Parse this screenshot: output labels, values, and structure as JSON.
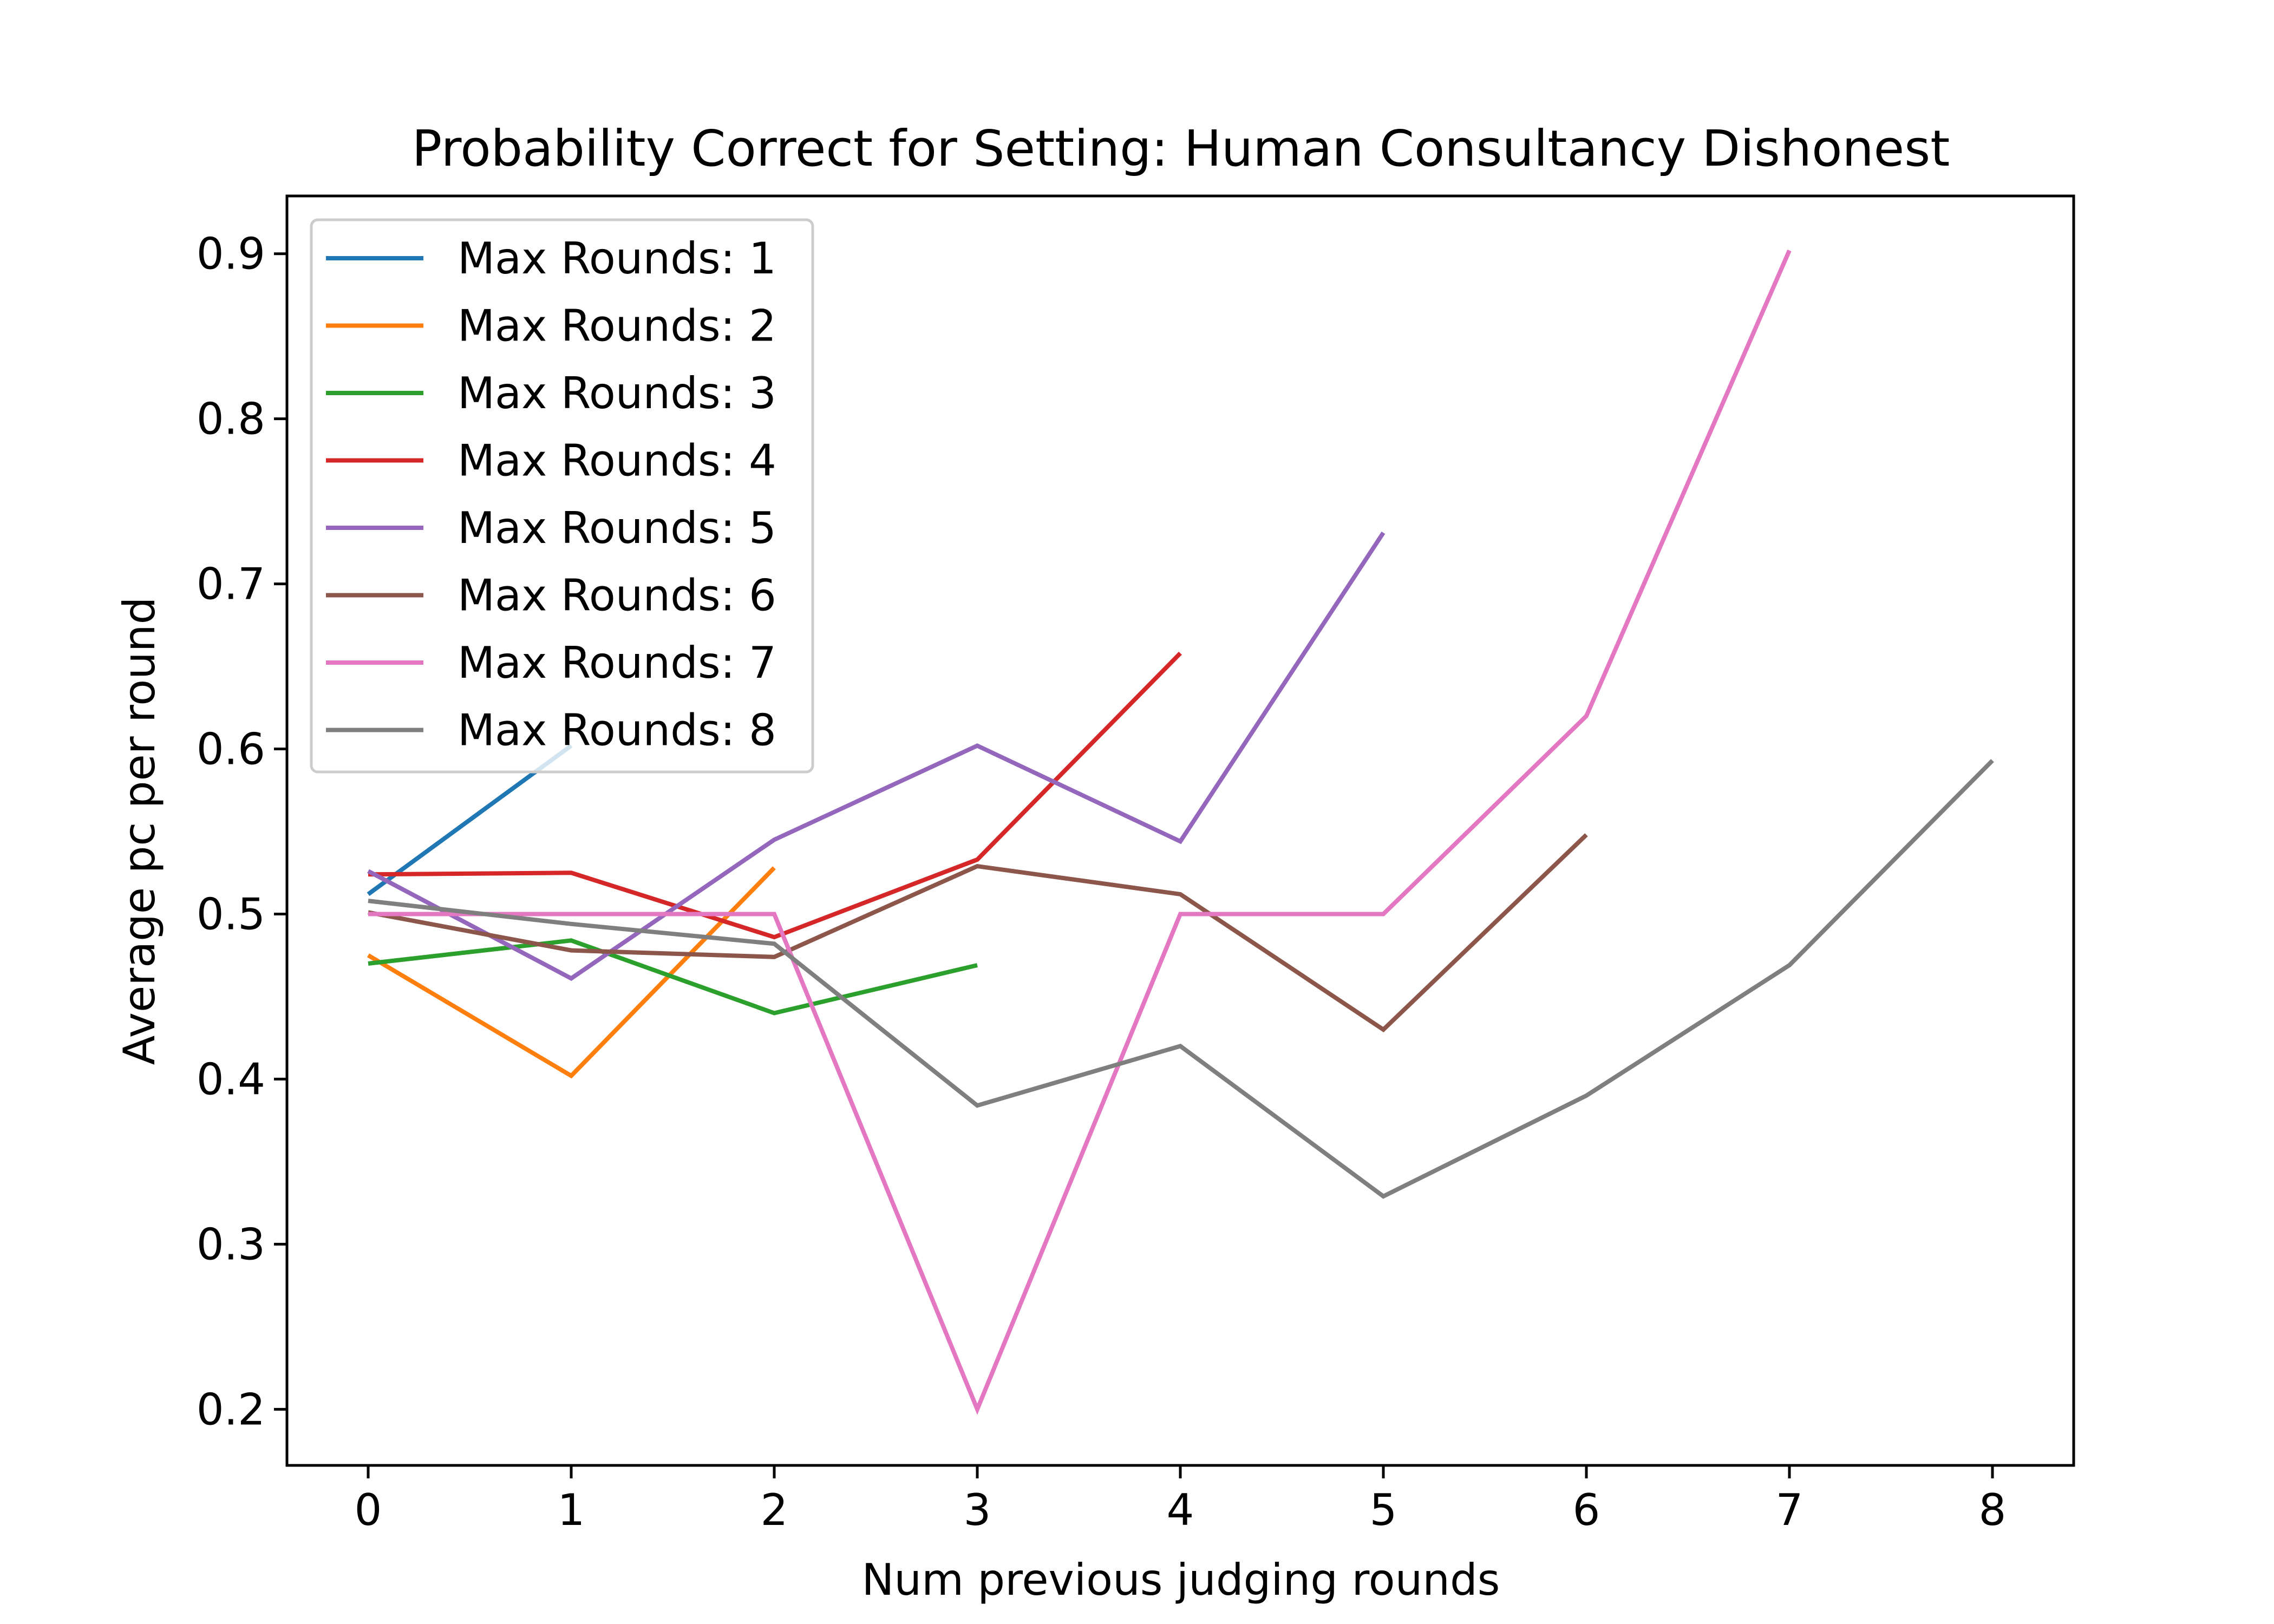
{
  "chart_data": {
    "type": "line",
    "title": "Probability Correct for Setting: Human Consultancy Dishonest",
    "xlabel": "Num previous judging rounds",
    "ylabel": "Average pc per round",
    "xlim": [
      -0.4,
      8.4
    ],
    "ylim": [
      0.166,
      0.935
    ],
    "xticks": [
      0,
      1,
      2,
      3,
      4,
      5,
      6,
      7,
      8
    ],
    "yticks": [
      0.2,
      0.3,
      0.4,
      0.5,
      0.6,
      0.7,
      0.8,
      0.9
    ],
    "xtick_labels": [
      "0",
      "1",
      "2",
      "3",
      "4",
      "5",
      "6",
      "7",
      "8"
    ],
    "ytick_labels": [
      "0.2",
      "0.3",
      "0.4",
      "0.5",
      "0.6",
      "0.7",
      "0.8",
      "0.9"
    ],
    "grid": false,
    "legend_position": "top-left",
    "series": [
      {
        "name": "Max Rounds: 1",
        "color": "#1f77b4",
        "x": [
          0,
          1
        ],
        "y": [
          0.512,
          0.602
        ]
      },
      {
        "name": "Max Rounds: 2",
        "color": "#ff7f0e",
        "x": [
          0,
          1,
          2
        ],
        "y": [
          0.475,
          0.402,
          0.528
        ]
      },
      {
        "name": "Max Rounds: 3",
        "color": "#2ca02c",
        "x": [
          0,
          1,
          2,
          3
        ],
        "y": [
          0.47,
          0.484,
          0.44,
          0.469
        ]
      },
      {
        "name": "Max Rounds: 4",
        "color": "#d62728",
        "x": [
          0,
          1,
          2,
          3,
          4
        ],
        "y": [
          0.524,
          0.525,
          0.486,
          0.533,
          0.658
        ]
      },
      {
        "name": "Max Rounds: 5",
        "color": "#9467bd",
        "x": [
          0,
          1,
          2,
          3,
          4,
          5
        ],
        "y": [
          0.526,
          0.461,
          0.545,
          0.602,
          0.544,
          0.731
        ]
      },
      {
        "name": "Max Rounds: 6",
        "color": "#8c564b",
        "x": [
          0,
          1,
          2,
          3,
          4,
          5,
          6
        ],
        "y": [
          0.501,
          0.478,
          0.474,
          0.529,
          0.512,
          0.43,
          0.548
        ]
      },
      {
        "name": "Max Rounds: 7",
        "color": "#e377c2",
        "x": [
          0,
          1,
          2,
          3,
          4,
          5,
          6,
          7
        ],
        "y": [
          0.5,
          0.5,
          0.5,
          0.2,
          0.5,
          0.5,
          0.62,
          0.902
        ]
      },
      {
        "name": "Max Rounds: 8",
        "color": "#7f7f7f",
        "x": [
          0,
          1,
          2,
          3,
          4,
          5,
          6,
          7,
          8
        ],
        "y": [
          0.508,
          0.494,
          0.482,
          0.384,
          0.42,
          0.329,
          0.39,
          0.469,
          0.593
        ]
      }
    ]
  }
}
